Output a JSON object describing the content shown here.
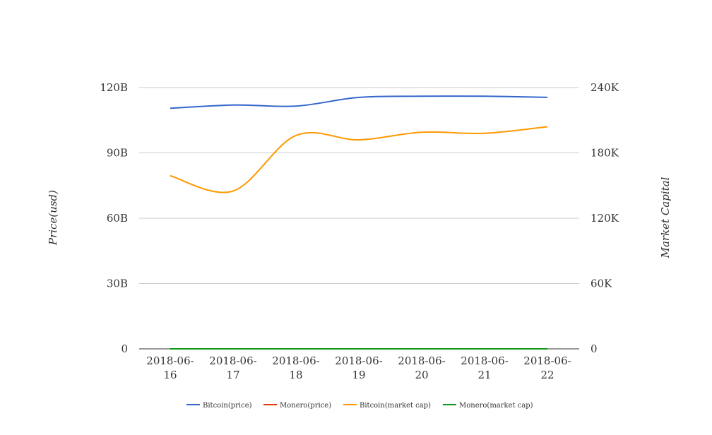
{
  "chart_data": {
    "type": "line",
    "categories": [
      "2018-06-16",
      "2018-06-17",
      "2018-06-18",
      "2018-06-19",
      "2018-06-20",
      "2018-06-21",
      "2018-06-22"
    ],
    "category_lines": [
      [
        "2018-06-",
        "16"
      ],
      [
        "2018-06-",
        "17"
      ],
      [
        "2018-06-",
        "18"
      ],
      [
        "2018-06-",
        "19"
      ],
      [
        "2018-06-",
        "20"
      ],
      [
        "2018-06-",
        "21"
      ],
      [
        "2018-06-",
        "22"
      ]
    ],
    "y_left": {
      "label": "Price(usd)",
      "range": [
        0,
        120000000000
      ],
      "ticks": [
        0,
        30000000000,
        60000000000,
        90000000000,
        120000000000
      ],
      "tick_labels": [
        "0",
        "30B",
        "60B",
        "90B",
        "120B"
      ]
    },
    "y_right": {
      "label": "Market Capital",
      "range": [
        0,
        240000
      ],
      "ticks": [
        0,
        60000,
        120000,
        180000,
        240000
      ],
      "tick_labels": [
        "0",
        "60K",
        "120K",
        "180K",
        "240K"
      ]
    },
    "grid": true,
    "legend_position": "bottom",
    "series": [
      {
        "name": "Bitcoin(price)",
        "axis": "left",
        "color": "#3366cc",
        "values": [
          110500000000,
          112000000000,
          111500000000,
          115500000000,
          116000000000,
          116000000000,
          115500000000
        ]
      },
      {
        "name": "Monero(price)",
        "axis": "left",
        "color": "#dc3912",
        "values": [
          130,
          130,
          125,
          120,
          118,
          117,
          116
        ]
      },
      {
        "name": "Bitcoin(market cap)",
        "axis": "right",
        "color": "#ff9900",
        "values": [
          159000,
          145000,
          196000,
          192000,
          199000,
          198000,
          204000
        ]
      },
      {
        "name": "Monero(market cap)",
        "axis": "right",
        "color": "#109618",
        "values": [
          2.1,
          2.2,
          2.1,
          2.0,
          2.0,
          2.0,
          1.9
        ]
      }
    ]
  }
}
